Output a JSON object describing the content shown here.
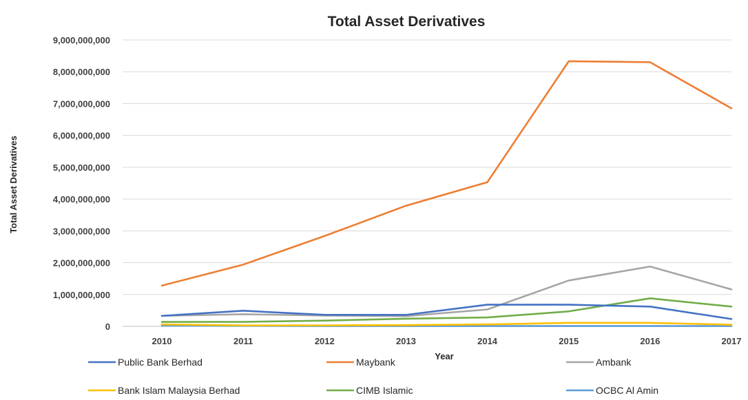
{
  "chart_data": {
    "type": "line",
    "title": "Total Asset Derivatives",
    "xlabel": "Year",
    "ylabel": "Total Asset Derivatives",
    "categories": [
      "2010",
      "2011",
      "2012",
      "2013",
      "2014",
      "2015",
      "2016",
      "2017"
    ],
    "y_ticks": [
      "0",
      "1,000,000,000",
      "2,000,000,000",
      "3,000,000,000",
      "4,000,000,000",
      "5,000,000,000",
      "6,000,000,000",
      "7,000,000,000",
      "8,000,000,000",
      "9,000,000,000"
    ],
    "ylim": [
      0,
      9000000000
    ],
    "grid": true,
    "legend_position": "bottom",
    "series": [
      {
        "name": "Public Bank Berhad",
        "color": "#4472c4",
        "values": [
          330000000,
          490000000,
          360000000,
          360000000,
          680000000,
          680000000,
          620000000,
          230000000
        ]
      },
      {
        "name": "Maybank",
        "color": "#ed7d31",
        "values": [
          1280000000,
          1940000000,
          2840000000,
          3790000000,
          4530000000,
          8330000000,
          8300000000,
          6850000000
        ]
      },
      {
        "name": "Ambank",
        "color": "#a5a5a5",
        "values": [
          330000000,
          380000000,
          340000000,
          320000000,
          530000000,
          1440000000,
          1880000000,
          1160000000
        ]
      },
      {
        "name": "Bank Islam Malaysia Berhad",
        "color": "#ffc000",
        "values": [
          60000000,
          30000000,
          30000000,
          40000000,
          60000000,
          110000000,
          110000000,
          50000000
        ]
      },
      {
        "name": "CIMB Islamic",
        "color": "#70ad47",
        "values": [
          140000000,
          140000000,
          180000000,
          240000000,
          280000000,
          470000000,
          880000000,
          620000000
        ]
      },
      {
        "name": "OCBC Al Amin",
        "color": "#5b9bd5",
        "values": [
          20000000,
          15000000,
          10000000,
          10000000,
          10000000,
          10000000,
          10000000,
          10000000
        ]
      }
    ]
  }
}
